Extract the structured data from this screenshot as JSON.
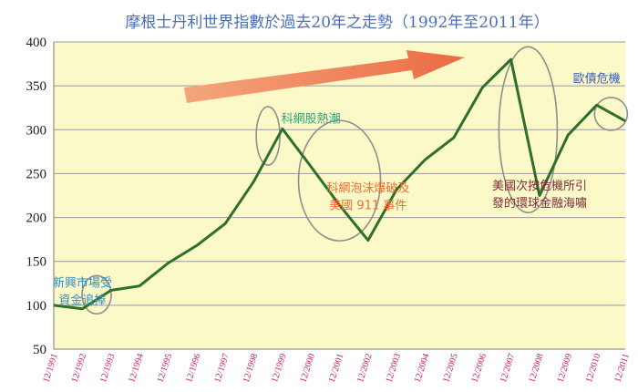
{
  "chart_data": {
    "type": "line",
    "title": "摩根士丹利世界指數於過去20年之走勢（1992年至2011年）",
    "xlabel": "",
    "ylabel": "",
    "ylim": [
      50,
      400
    ],
    "yticks": [
      "50",
      "100",
      "150",
      "200",
      "250",
      "300",
      "350",
      "400"
    ],
    "categories": [
      "12/1991",
      "12/1992",
      "12/1993",
      "12/1994",
      "12/1995",
      "12/1996",
      "12/1997",
      "12/1998",
      "12/1999",
      "12/2000",
      "12/2001",
      "12/2002",
      "12/2003",
      "12/2004",
      "12/2005",
      "12/2006",
      "12/2007",
      "12/2008",
      "12/2009",
      "12/2010",
      "12/2011"
    ],
    "grid": "horizontal",
    "series": [
      {
        "name": "",
        "values": [
          100,
          96,
          117,
          122,
          148,
          168,
          193,
          241,
          301,
          258,
          214,
          174,
          232,
          266,
          291,
          348,
          380,
          225,
          294,
          328,
          310
        ]
      }
    ],
    "annotations": [
      {
        "lines": [
          "新興市場受",
          "資金追捧"
        ],
        "color": "#2e8fc4",
        "category_index": 1,
        "y": 121
      },
      {
        "lines": [
          "科網股熱潮"
        ],
        "color": "#2fa37c",
        "category_index": 9,
        "y": 308
      },
      {
        "lines": [
          "科網泡沫爆破及",
          "美國 911 事件"
        ],
        "color": "#ef6d34",
        "category_index": 11,
        "y": 229
      },
      {
        "lines": [
          "美國次按危機所引",
          "發的環球金融海嘯"
        ],
        "color": "#7b2c3a",
        "category_index": 17,
        "y": 232
      },
      {
        "lines": [
          "歐債危機"
        ],
        "color": "#3a5bb0",
        "category_index": 19,
        "y": 354
      }
    ],
    "colors": {
      "plot_background": "#fbf9c8",
      "line": "#2f6e2b",
      "gridline": "#9a9a9a",
      "arrow": "#f07a52",
      "ellipse": "#8e8e8e",
      "title": "#4a6fb5",
      "x_tick": "#c2185b"
    }
  }
}
